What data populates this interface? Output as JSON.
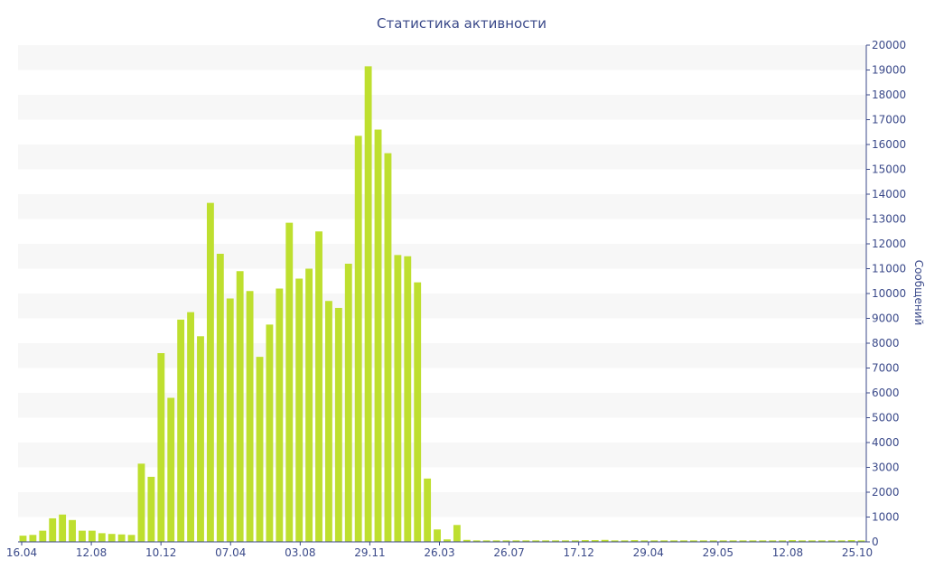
{
  "chart_data": {
    "type": "bar",
    "title": "Статистика активности",
    "xlabel": "",
    "ylabel": "Сообщений",
    "y_axis_side": "right",
    "ylim": [
      0,
      20000
    ],
    "yticks": [
      0,
      1000,
      2000,
      3000,
      4000,
      5000,
      6000,
      7000,
      8000,
      9000,
      10000,
      11000,
      12000,
      13000,
      14000,
      15000,
      16000,
      17000,
      18000,
      19000,
      20000
    ],
    "xticks": [
      "16.04",
      "12.08",
      "10.12",
      "07.04",
      "03.08",
      "29.11",
      "26.03",
      "26.07",
      "17.12",
      "29.04",
      "29.05",
      "12.08",
      "25.10"
    ],
    "grid": "horizontal bands",
    "bar_color": "#bedf2f",
    "band_color": "#f7f7f7",
    "text_color": "#3b4a8a",
    "values": [
      250,
      280,
      450,
      950,
      1100,
      880,
      450,
      450,
      350,
      320,
      300,
      280,
      3150,
      2620,
      7600,
      5800,
      8950,
      9250,
      8280,
      13650,
      11600,
      9800,
      10900,
      10100,
      7450,
      8750,
      10200,
      12850,
      10600,
      11000,
      12500,
      9700,
      9420,
      11200,
      16350,
      19150,
      16600,
      15650,
      11550,
      11500,
      10450,
      2550,
      500,
      100,
      680,
      80,
      60,
      60,
      60,
      60,
      60,
      60,
      60,
      60,
      60,
      60,
      60,
      70,
      70,
      80,
      60,
      60,
      70,
      60,
      60,
      60,
      60,
      60,
      60,
      60,
      60,
      60,
      60,
      60,
      60,
      60,
      60,
      60,
      70,
      60,
      60,
      60,
      60,
      60,
      70,
      60
    ]
  }
}
